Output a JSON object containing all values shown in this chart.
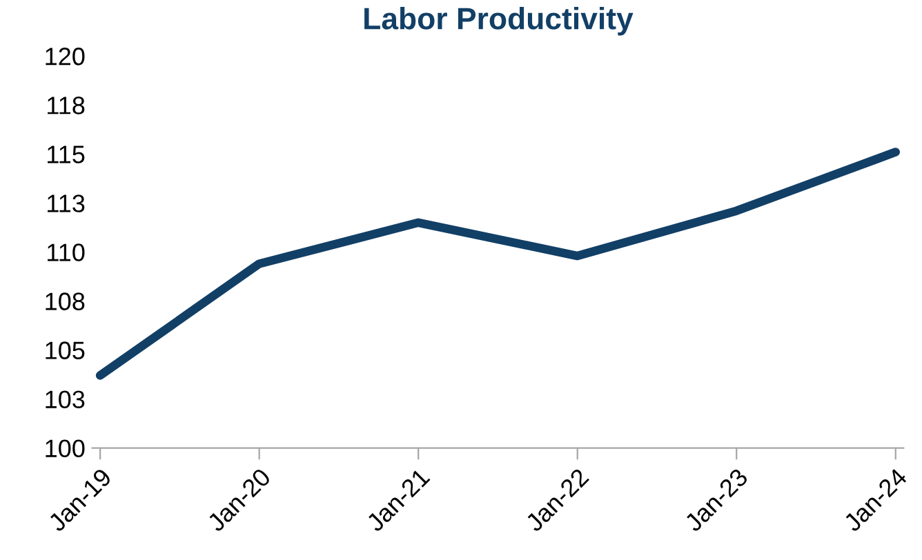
{
  "chart_data": {
    "type": "line",
    "title": "Labor Productivity",
    "categories": [
      "Jan-19",
      "Jan-20",
      "Jan-21",
      "Jan-22",
      "Jan-23",
      "Jan-24"
    ],
    "series": [
      {
        "color": "#123f66",
        "values": [
          103.7,
          109.4,
          111.5,
          109.8,
          112.1,
          115.1
        ]
      }
    ],
    "ylim": [
      100,
      120
    ],
    "yticks": [
      100,
      {
        "value": 102.5,
        "label": "103"
      },
      105,
      {
        "value": 107.5,
        "label": "108"
      },
      110,
      {
        "value": 112.5,
        "label": "113"
      },
      115,
      {
        "value": 117.5,
        "label": "118"
      },
      120
    ],
    "grid": false,
    "legend": false,
    "marker": "none",
    "line_style": "solid"
  }
}
